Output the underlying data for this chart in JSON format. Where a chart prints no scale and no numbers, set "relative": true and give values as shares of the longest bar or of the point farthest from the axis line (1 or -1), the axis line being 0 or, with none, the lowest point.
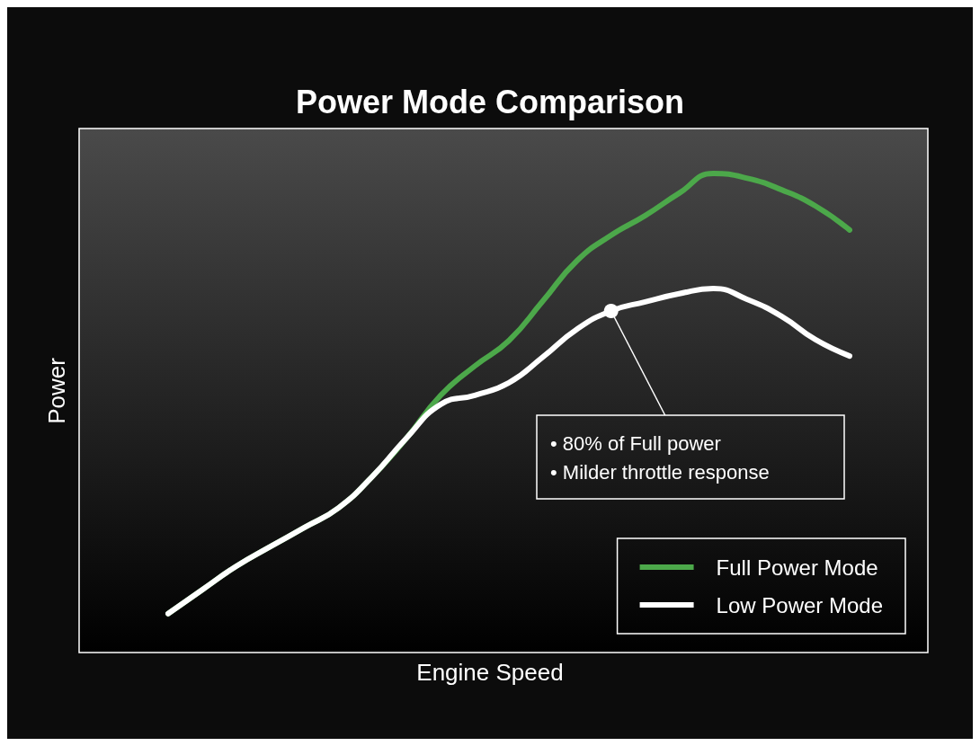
{
  "chart_data": {
    "type": "line",
    "title": "Power Mode Comparison",
    "xlabel": "Engine Speed",
    "ylabel": "Power",
    "relative": true,
    "categories": [
      null,
      null,
      null,
      null,
      null,
      null,
      null,
      null,
      null,
      null,
      null,
      null,
      null,
      null,
      null,
      null,
      null,
      null,
      null,
      null,
      null
    ],
    "series": [
      {
        "name": "Full Power Mode",
        "color": "#4ca84a",
        "values": [
          0.081,
          0.131,
          0.18,
          0.221,
          0.261,
          0.302,
          0.368,
          0.448,
          0.537,
          0.598,
          0.651,
          0.734,
          0.818,
          0.871,
          0.912,
          0.959,
          1.0,
          0.99,
          0.966,
          0.932,
          0.882
        ]
      },
      {
        "name": "Low Power Mode",
        "color": "#ffffff",
        "values": [
          0.081,
          0.131,
          0.18,
          0.221,
          0.261,
          0.302,
          0.368,
          0.448,
          0.518,
          0.537,
          0.563,
          0.617,
          0.675,
          0.713,
          0.732,
          0.749,
          0.76,
          0.737,
          0.702,
          0.653,
          0.619
        ]
      }
    ],
    "annotations": [
      "• 80% of Full power",
      "• Milder throttle response"
    ],
    "legend": "bottom right",
    "grid": false,
    "marker": "none",
    "line_style": "solid"
  }
}
